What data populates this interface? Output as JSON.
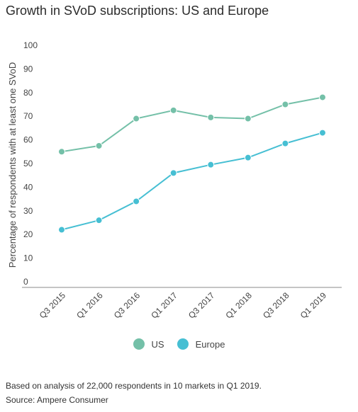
{
  "title": "Growth in SVoD subscriptions: US and Europe",
  "chart_data": {
    "type": "line",
    "title": "Growth in SVoD subscriptions: US and Europe",
    "xlabel": "",
    "ylabel": "Percentage of respondents with at least one SVoD",
    "categories": [
      "Q3 2015",
      "Q1 2016",
      "Q3 2016",
      "Q1 2017",
      "Q3 2017",
      "Q1 2018",
      "Q3 2018",
      "Q1 2019"
    ],
    "y_ticks": [
      0,
      10,
      20,
      30,
      40,
      50,
      60,
      70,
      80,
      90,
      100
    ],
    "ylim": [
      0,
      100
    ],
    "grid": false,
    "legend_position": "bottom",
    "series": [
      {
        "name": "US",
        "color": "#74c0a8",
        "values": [
          55,
          57.5,
          69,
          72.5,
          69.5,
          69,
          75,
          78
        ]
      },
      {
        "name": "Europe",
        "color": "#46bfd3",
        "values": [
          22,
          26,
          34,
          46,
          49.5,
          52.5,
          58.5,
          63
        ]
      }
    ]
  },
  "footer": {
    "note": "Based on analysis of 22,000 respondents in 10 markets in Q1 2019.",
    "source": "Source: Ampere Consumer"
  }
}
